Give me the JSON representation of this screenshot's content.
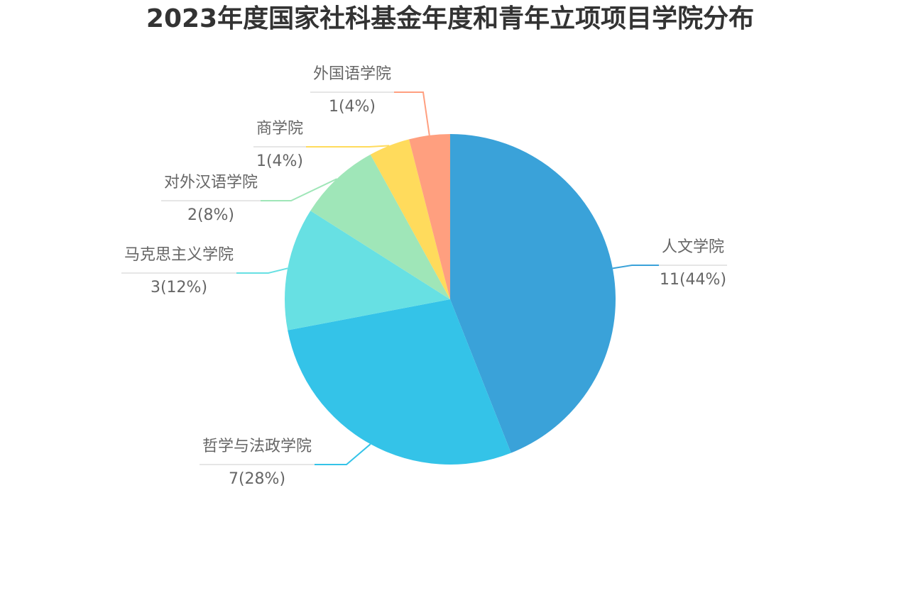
{
  "chart_data": {
    "type": "pie",
    "title": "2023年度国家社科基金年度和青年立项项目学院分布",
    "categories": [
      "人文学院",
      "哲学与法政学院",
      "马克思主义学院",
      "对外汉语学院",
      "商学院",
      "外国语学院"
    ],
    "values": [
      11,
      7,
      3,
      2,
      1,
      1
    ],
    "value_labels": [
      "11(44%)",
      "7(28%)",
      "3(12%)",
      "2(8%)",
      "1(4%)",
      "1(4%)"
    ],
    "colors": [
      "#3aa2d9",
      "#34c3e8",
      "#67e0e3",
      "#9fe6b8",
      "#ffdb5c",
      "#ff9f7f"
    ]
  }
}
